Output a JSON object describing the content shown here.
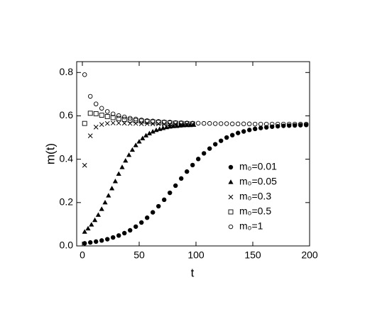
{
  "chart_data": {
    "type": "scatter",
    "x_label": "t",
    "y_label": "m(t)",
    "xlim": [
      -5,
      200
    ],
    "ylim": [
      0,
      0.85
    ],
    "xticks": [
      0,
      50,
      100,
      150,
      200
    ],
    "yticks": [
      {
        "value": 0,
        "label": "0.0"
      },
      0.2,
      0.4,
      0.6,
      0.8
    ],
    "legend": "lower right",
    "series": [
      {
        "name": "m₀=0.01",
        "color": "#000000",
        "marker": "filled-circle",
        "x": [
          2,
          7,
          12,
          17,
          22,
          27,
          32,
          37,
          42,
          47,
          52,
          57,
          62,
          67,
          72,
          77,
          82,
          87,
          92,
          97,
          102,
          107,
          112,
          117,
          122,
          127,
          132,
          137,
          142,
          147,
          152,
          157,
          162,
          167,
          172,
          177,
          182,
          187,
          192,
          197
        ],
        "values": [
          0.012,
          0.016,
          0.02,
          0.025,
          0.031,
          0.039,
          0.048,
          0.059,
          0.072,
          0.089,
          0.108,
          0.13,
          0.155,
          0.183,
          0.213,
          0.245,
          0.278,
          0.311,
          0.343,
          0.373,
          0.401,
          0.427,
          0.449,
          0.469,
          0.485,
          0.5,
          0.511,
          0.521,
          0.528,
          0.535,
          0.54,
          0.544,
          0.547,
          0.55,
          0.552,
          0.554,
          0.555,
          0.556,
          0.557,
          0.558
        ]
      },
      {
        "name": "m₀=0.05",
        "color": "#000000",
        "marker": "triangle",
        "x": [
          2,
          5,
          8,
          11,
          14,
          17,
          20,
          23,
          26,
          29,
          32,
          35,
          38,
          41,
          44,
          47,
          50,
          53,
          56,
          59,
          62,
          65,
          68,
          71,
          74,
          77,
          80,
          83,
          86,
          89,
          92,
          95,
          98
        ],
        "values": [
          0.065,
          0.08,
          0.098,
          0.119,
          0.143,
          0.17,
          0.2,
          0.232,
          0.265,
          0.298,
          0.332,
          0.363,
          0.393,
          0.419,
          0.443,
          0.464,
          0.481,
          0.496,
          0.509,
          0.519,
          0.527,
          0.534,
          0.539,
          0.543,
          0.547,
          0.55,
          0.552,
          0.553,
          0.555,
          0.556,
          0.557,
          0.557,
          0.558
        ]
      },
      {
        "name": "m₀=0.3",
        "color": "#000000",
        "marker": "cross",
        "x": [
          2,
          7,
          12,
          17,
          22,
          27,
          32,
          37,
          42,
          47,
          52,
          57,
          62,
          67,
          72,
          77,
          82,
          87,
          92,
          97
        ],
        "values": [
          0.372,
          0.508,
          0.548,
          0.56,
          0.565,
          0.567,
          0.567,
          0.566,
          0.565,
          0.565,
          0.564,
          0.564,
          0.563,
          0.563,
          0.562,
          0.562,
          0.562,
          0.561,
          0.561,
          0.561
        ]
      },
      {
        "name": "m₀=0.5",
        "color": "#000000",
        "marker": "square",
        "x": [
          2,
          7,
          12,
          17,
          22,
          27,
          32,
          37,
          42,
          47,
          52,
          57,
          62,
          67,
          72,
          77,
          82,
          87,
          92,
          97
        ],
        "values": [
          0.565,
          0.612,
          0.61,
          0.603,
          0.597,
          0.592,
          0.588,
          0.584,
          0.581,
          0.578,
          0.576,
          0.574,
          0.572,
          0.57,
          0.569,
          0.567,
          0.566,
          0.565,
          0.564,
          0.563
        ]
      },
      {
        "name": "m₀=1",
        "color": "#000000",
        "marker": "circle",
        "x": [
          2,
          7,
          12,
          17,
          22,
          27,
          32,
          37,
          42,
          47,
          52,
          57,
          62,
          67,
          72,
          77,
          82,
          87,
          92,
          97,
          102,
          107,
          112,
          117,
          122,
          127,
          132,
          137,
          142,
          147,
          152,
          157,
          162,
          167,
          172,
          177,
          182,
          187,
          192,
          197
        ],
        "values": [
          0.79,
          0.69,
          0.655,
          0.635,
          0.62,
          0.609,
          0.601,
          0.595,
          0.589,
          0.585,
          0.581,
          0.578,
          0.576,
          0.574,
          0.572,
          0.571,
          0.569,
          0.568,
          0.567,
          0.566,
          0.566,
          0.565,
          0.565,
          0.564,
          0.564,
          0.564,
          0.563,
          0.563,
          0.563,
          0.563,
          0.562,
          0.562,
          0.562,
          0.562,
          0.562,
          0.562,
          0.562,
          0.562,
          0.562,
          0.562
        ]
      }
    ]
  }
}
